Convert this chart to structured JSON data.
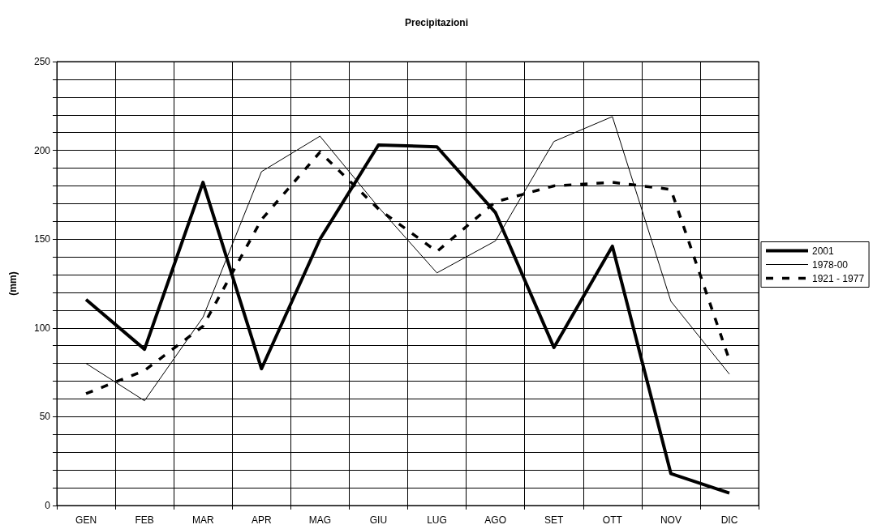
{
  "chart_data": {
    "type": "line",
    "title": "Precipitazioni",
    "ylabel": "(mm)",
    "categories": [
      "GEN",
      "FEB",
      "MAR",
      "APR",
      "MAG",
      "GIU",
      "LUG",
      "AGO",
      "SET",
      "OTT",
      "NOV",
      "DIC"
    ],
    "series": [
      {
        "name": "2001",
        "color": "#000000",
        "line_style": "solid",
        "values": [
          116,
          88,
          182,
          77,
          150,
          203,
          202,
          165,
          89,
          146,
          18,
          7
        ]
      },
      {
        "name": "1978-00",
        "color": "#000000",
        "line_style": "solid",
        "values": [
          80,
          59,
          106,
          188,
          208,
          168,
          131,
          149,
          205,
          219,
          115,
          74
        ]
      },
      {
        "name": "1921 - 1977",
        "color": "#000000",
        "line_style": "dashed",
        "values": [
          63,
          76,
          101,
          161,
          199,
          167,
          143,
          171,
          180,
          182,
          178,
          82
        ]
      }
    ],
    "ylim": [
      0,
      250
    ],
    "yticks": [
      0,
      {
        "value": 10,
        "label": null
      },
      {
        "value": 20,
        "label": null
      },
      {
        "value": 30,
        "label": null
      },
      {
        "value": 40,
        "label": null
      },
      50,
      {
        "value": 60,
        "label": null
      },
      {
        "value": 70,
        "label": null
      },
      {
        "value": 80,
        "label": null
      },
      {
        "value": 90,
        "label": null
      },
      100,
      {
        "value": 110,
        "label": null
      },
      {
        "value": 120,
        "label": null
      },
      {
        "value": 130,
        "label": null
      },
      {
        "value": 140,
        "label": null
      },
      150,
      {
        "value": 160,
        "label": null
      },
      {
        "value": 170,
        "label": null
      },
      {
        "value": 180,
        "label": null
      },
      {
        "value": 190,
        "label": null
      },
      200,
      {
        "value": 210,
        "label": null
      },
      {
        "value": 220,
        "label": null
      },
      {
        "value": 230,
        "label": null
      },
      {
        "value": 240,
        "label": null
      },
      250
    ],
    "grid": true,
    "legend": "right",
    "marker": "none"
  }
}
